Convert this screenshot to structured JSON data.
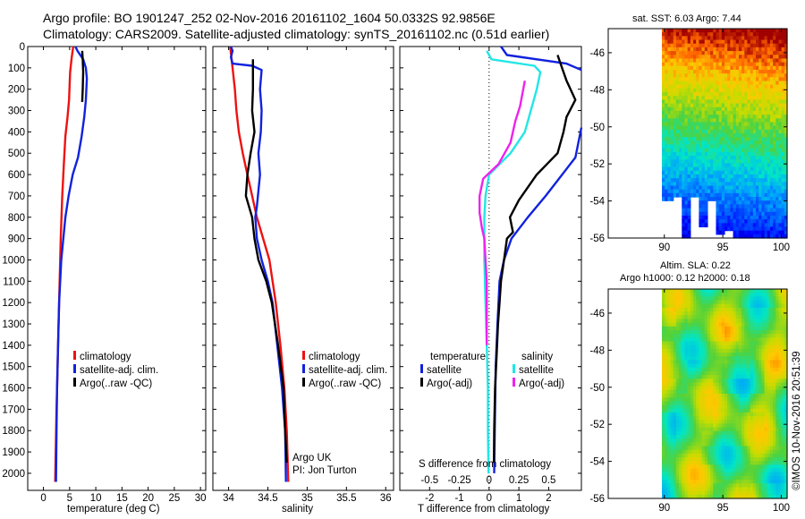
{
  "header": {
    "line1": "Argo profile: BO 1901247_252 02-Nov-2016 20161102_1604 50.0332S 92.9856E",
    "line2": "Climatology: CARS2009. Satellite-adjusted climatology: synTS_20161102.nc (0.51d earlier)"
  },
  "colors": {
    "climatology": "#ee1111",
    "satellite": "#1122dd",
    "argo": "#000000",
    "sal_satellite": "#22e6e6",
    "sal_argo": "#ee22ee"
  },
  "depth_ticks": [
    0,
    100,
    200,
    300,
    400,
    500,
    600,
    700,
    800,
    900,
    1000,
    1100,
    1200,
    1300,
    1400,
    1500,
    1600,
    1700,
    1800,
    1900,
    2000
  ],
  "chart_data": [
    {
      "type": "line",
      "id": "temperature_profile",
      "xlabel": "temperature (deg C)",
      "xlim": [
        -3,
        31
      ],
      "ylim": [
        2080,
        0
      ],
      "xticks": [
        0,
        5,
        10,
        15,
        20,
        25,
        30
      ],
      "series": [
        {
          "name": "climatology",
          "color": "#ee1111",
          "points": [
            [
              5.7,
              0
            ],
            [
              5.4,
              50
            ],
            [
              5.1,
              120
            ],
            [
              4.9,
              250
            ],
            [
              4.6,
              330
            ],
            [
              4.2,
              420
            ],
            [
              3.9,
              550
            ],
            [
              3.6,
              700
            ],
            [
              3.3,
              900
            ],
            [
              3.1,
              1100
            ],
            [
              2.9,
              1300
            ],
            [
              2.7,
              1500
            ],
            [
              2.5,
              1700
            ],
            [
              2.35,
              1900
            ],
            [
              2.25,
              2040
            ]
          ]
        },
        {
          "name": "satellite-adj. clim.",
          "color": "#1122dd",
          "points": [
            [
              6.1,
              0
            ],
            [
              6.5,
              20
            ],
            [
              7.6,
              60
            ],
            [
              8.1,
              100
            ],
            [
              8.3,
              150
            ],
            [
              8.1,
              250
            ],
            [
              7.8,
              330
            ],
            [
              7.3,
              420
            ],
            [
              6.6,
              520
            ],
            [
              5.6,
              600
            ],
            [
              4.8,
              700
            ],
            [
              4.2,
              800
            ],
            [
              3.8,
              900
            ],
            [
              3.4,
              1000
            ],
            [
              3.0,
              1200
            ],
            [
              2.8,
              1400
            ],
            [
              2.6,
              1600
            ],
            [
              2.5,
              1800
            ],
            [
              2.4,
              2040
            ]
          ]
        },
        {
          "name": "Argo(..raw -QC)",
          "color": "#000000",
          "points": [
            [
              7.4,
              20
            ],
            [
              7.5,
              60
            ],
            [
              7.6,
              120
            ],
            [
              7.5,
              200
            ],
            [
              7.4,
              260
            ]
          ]
        }
      ],
      "legend": [
        "climatology",
        "satellite-adj. clim.",
        "Argo(..raw -QC)"
      ]
    },
    {
      "type": "line",
      "id": "salinity_profile",
      "xlabel": "salinity",
      "xlim": [
        33.8,
        36.1
      ],
      "ylim": [
        2080,
        0
      ],
      "xticks": [
        "34",
        "34.5",
        "35",
        "35.5",
        "36"
      ],
      "series": [
        {
          "name": "climatology",
          "color": "#ee1111",
          "points": [
            [
              34.02,
              0
            ],
            [
              34.05,
              100
            ],
            [
              34.08,
              200
            ],
            [
              34.1,
              300
            ],
            [
              34.13,
              400
            ],
            [
              34.18,
              500
            ],
            [
              34.24,
              600
            ],
            [
              34.3,
              700
            ],
            [
              34.36,
              800
            ],
            [
              34.44,
              900
            ],
            [
              34.52,
              1000
            ],
            [
              34.6,
              1200
            ],
            [
              34.66,
              1400
            ],
            [
              34.71,
              1600
            ],
            [
              34.74,
              1800
            ],
            [
              34.76,
              2040
            ]
          ]
        },
        {
          "name": "satellite-adj. clim.",
          "color": "#1122dd",
          "points": [
            [
              34.03,
              0
            ],
            [
              34.05,
              20
            ],
            [
              34.03,
              50
            ],
            [
              34.05,
              80
            ],
            [
              34.3,
              90
            ],
            [
              34.42,
              110
            ],
            [
              34.4,
              200
            ],
            [
              34.42,
              300
            ],
            [
              34.41,
              400
            ],
            [
              34.38,
              500
            ],
            [
              34.4,
              600
            ],
            [
              34.36,
              750
            ],
            [
              34.34,
              800
            ],
            [
              34.36,
              900
            ],
            [
              34.42,
              1000
            ],
            [
              34.5,
              1100
            ],
            [
              34.56,
              1200
            ],
            [
              34.62,
              1400
            ],
            [
              34.68,
              1600
            ],
            [
              34.72,
              1800
            ],
            [
              34.73,
              2040
            ]
          ]
        },
        {
          "name": "Argo(..raw -QC)",
          "color": "#000000",
          "points": [
            [
              34.31,
              60
            ],
            [
              34.31,
              200
            ],
            [
              34.3,
              300
            ],
            [
              34.33,
              400
            ],
            [
              34.28,
              500
            ],
            [
              34.24,
              600
            ],
            [
              34.22,
              700
            ],
            [
              34.3,
              800
            ],
            [
              34.33,
              900
            ],
            [
              34.38,
              1000
            ],
            [
              34.48,
              1100
            ],
            [
              34.55,
              1200
            ],
            [
              34.63,
              1400
            ],
            [
              34.7,
              1600
            ],
            [
              34.72,
              1800
            ],
            [
              34.74,
              1950
            ]
          ]
        }
      ],
      "legend": [
        "climatology",
        "satellite-adj. clim.",
        "Argo(..raw -QC)"
      ],
      "annotations": [
        "Argo UK",
        "PI: Jon Turton"
      ]
    },
    {
      "type": "line",
      "id": "difference_profile",
      "xlabel": "T difference from climatology",
      "xlabel_top": "S difference from climatology",
      "xlim": [
        -3,
        3.1
      ],
      "xlim_salinity": [
        -0.75,
        0.775
      ],
      "ylim": [
        2080,
        0
      ],
      "xticks": [
        "-2",
        "-1",
        "0",
        "1",
        "2"
      ],
      "xticks_salinity": [
        "-0.5",
        "-0.25",
        "0",
        "0.25",
        "0.5"
      ],
      "zero_line": true,
      "series": [
        {
          "name": "temperature satellite",
          "color": "#1122dd",
          "points": [
            [
              0.4,
              0
            ],
            [
              0.6,
              40
            ],
            [
              2.6,
              80
            ],
            [
              3.1,
              110
            ]
          ]
        },
        {
          "name": "temperature satellite (deep)",
          "color": "#1122dd",
          "points": [
            [
              3.1,
              380
            ],
            [
              2.9,
              520
            ],
            [
              1.9,
              700
            ],
            [
              1.3,
              800
            ],
            [
              0.75,
              900
            ],
            [
              0.5,
              1000
            ],
            [
              0.35,
              1100
            ],
            [
              0.28,
              1300
            ],
            [
              0.22,
              1500
            ],
            [
              0.2,
              1700
            ],
            [
              0.18,
              1900
            ],
            [
              0.17,
              2000
            ]
          ]
        },
        {
          "name": "temperature Argo(-adj)",
          "color": "#000000",
          "points": [
            [
              2.3,
              40
            ],
            [
              2.4,
              80
            ],
            [
              2.6,
              160
            ],
            [
              2.9,
              250
            ],
            [
              2.6,
              330
            ],
            [
              2.5,
              400
            ],
            [
              2.3,
              500
            ],
            [
              1.6,
              600
            ],
            [
              1.0,
              720
            ],
            [
              0.7,
              800
            ],
            [
              0.8,
              870
            ],
            [
              0.6,
              900
            ],
            [
              0.5,
              1000
            ],
            [
              0.45,
              1050
            ],
            [
              0.4,
              1100
            ],
            [
              0.35,
              1200
            ],
            [
              0.3,
              1300
            ],
            [
              0.25,
              1450
            ],
            [
              0.2,
              1600
            ],
            [
              0.17,
              1800
            ],
            [
              0.16,
              1950
            ]
          ]
        },
        {
          "name": "salinity satellite",
          "color": "#22e6e6",
          "points": [
            [
              -0.02,
              20
            ],
            [
              0.02,
              60
            ],
            [
              0.38,
              90
            ],
            [
              0.43,
              120
            ],
            [
              0.4,
              200
            ],
            [
              0.36,
              280
            ],
            [
              0.3,
              400
            ],
            [
              0.18,
              500
            ],
            [
              0.0,
              600
            ],
            [
              -0.03,
              700
            ],
            [
              -0.04,
              800
            ],
            [
              -0.04,
              1000
            ],
            [
              -0.03,
              1200
            ],
            [
              -0.02,
              1400
            ],
            [
              -0.01,
              1600
            ],
            [
              -0.01,
              1800
            ],
            [
              -0.005,
              2000
            ]
          ]
        },
        {
          "name": "salinity Argo(-adj)",
          "color": "#ee22ee",
          "points": [
            [
              0.3,
              160
            ],
            [
              0.26,
              280
            ],
            [
              0.22,
              350
            ],
            [
              0.18,
              450
            ],
            [
              0.08,
              550
            ],
            [
              -0.05,
              620
            ],
            [
              -0.08,
              700
            ],
            [
              -0.08,
              780
            ],
            [
              -0.06,
              850
            ],
            [
              -0.04,
              900
            ],
            [
              -0.03,
              1000
            ],
            [
              -0.02,
              1100
            ],
            [
              -0.02,
              1250
            ],
            [
              -0.02,
              1400
            ]
          ]
        }
      ],
      "legend": {
        "temperature_title": "temperature",
        "salinity_title": "salinity",
        "items": [
          "satellite",
          "Argo(-adj)",
          "satellite",
          "Argo(-adj)"
        ]
      }
    },
    {
      "type": "heatmap",
      "id": "sst_map",
      "title": "sat. SST: 6.03 Argo: 7.44",
      "xticks": [
        "90",
        "95",
        "100"
      ],
      "yticks": [
        "-46",
        "-48",
        "-50",
        "-52",
        "-54",
        "-56"
      ]
    },
    {
      "type": "heatmap",
      "id": "sla_map",
      "title_line1": "Altim. SLA: 0.22",
      "title_line2": "Argo h1000: 0.12 h2000: 0.18",
      "xticks": [
        "90",
        "95",
        "100"
      ],
      "yticks": [
        "-46",
        "-48",
        "-50",
        "-52",
        "-54",
        "-56"
      ]
    }
  ],
  "credit": "©IMOS 10-Nov-2016 20:51:39"
}
